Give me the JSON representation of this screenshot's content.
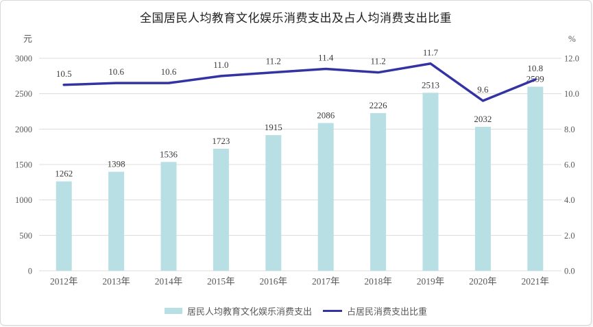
{
  "title": "全国居民人均教育文化娱乐消费支出及占人均消费支出比重",
  "left_axis": {
    "unit": "元",
    "ticks": [
      "0",
      "500",
      "1000",
      "1500",
      "2000",
      "2500",
      "3000"
    ]
  },
  "right_axis": {
    "unit": "%",
    "ticks": [
      "0.0",
      "2.0",
      "4.0",
      "6.0",
      "8.0",
      "10.0",
      "12.0"
    ]
  },
  "legend": [
    {
      "label": "居民人均教育文化娱乐消费支出",
      "type": "bar",
      "color": "#b8dfe3"
    },
    {
      "label": "占居民消费支出比重",
      "type": "line",
      "color": "#3333a3"
    }
  ],
  "colors": {
    "bar": "#b8dfe3",
    "line": "#3333a3",
    "gridline": "#dcdcdc",
    "axis_text": "#595959",
    "data_label": "#3a3a3a"
  },
  "chart_data": {
    "type": "bar",
    "title": "全国居民人均教育文化娱乐消费支出及占人均消费支出比重",
    "categories": [
      "2012年",
      "2013年",
      "2014年",
      "2015年",
      "2016年",
      "2017年",
      "2018年",
      "2019年",
      "2020年",
      "2021年"
    ],
    "series": [
      {
        "name": "居民人均教育文化娱乐消费支出",
        "type": "bar",
        "axis": "left",
        "color": "#b8dfe3",
        "values": [
          1262,
          1398,
          1536,
          1723,
          1915,
          2086,
          2226,
          2513,
          2032,
          2599
        ]
      },
      {
        "name": "占居民消费支出比重",
        "type": "line",
        "axis": "right",
        "color": "#3333a3",
        "values": [
          10.5,
          10.6,
          10.6,
          11.0,
          11.2,
          11.4,
          11.2,
          11.7,
          9.6,
          10.8
        ]
      }
    ],
    "xlabel": "",
    "ylabel_left": "元",
    "ylabel_right": "%",
    "ylim_left": [
      0,
      3000
    ],
    "ylim_right": [
      0,
      12
    ],
    "grid": true,
    "legend_position": "bottom"
  }
}
